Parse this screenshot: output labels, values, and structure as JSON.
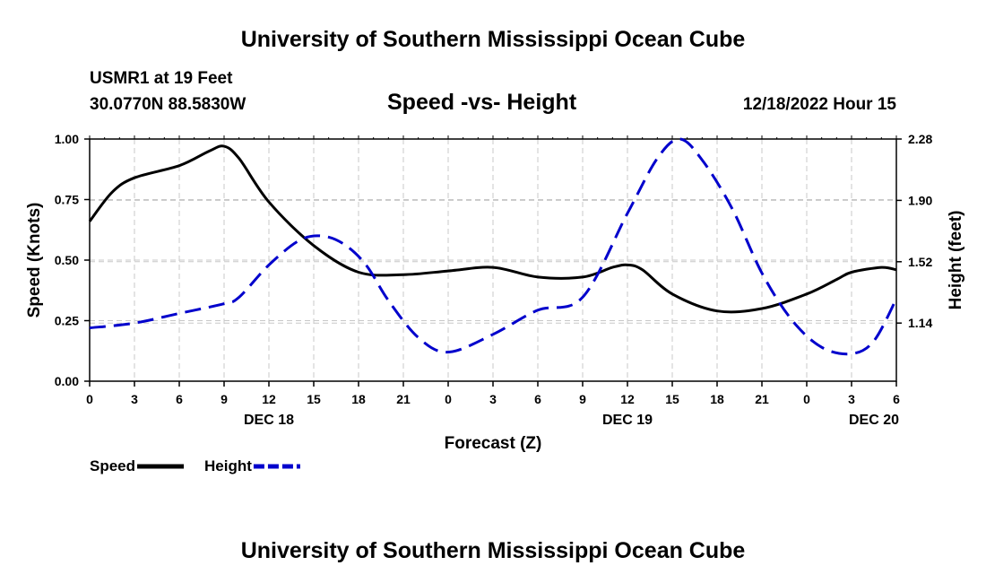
{
  "header": {
    "title": "University of Southern Mississippi Ocean Cube",
    "station": "USMR1 at 19 Feet",
    "coords": "30.0770N  88.5830W",
    "datetime": "12/18/2022 Hour 15"
  },
  "footer": {
    "title": "University of Southern Mississippi Ocean Cube"
  },
  "chart_data": {
    "type": "line",
    "title": "Speed -vs- Height",
    "xlabel": "Forecast (Z)",
    "ylabel": "Speed (Knots)",
    "y2label": "Height (feet)",
    "grid": true,
    "x_range": [
      0,
      54
    ],
    "ylim": [
      0,
      1.0
    ],
    "y2lim": [
      0.78,
      2.28
    ],
    "x_ticks": [
      0,
      3,
      6,
      9,
      12,
      15,
      18,
      21,
      24,
      27,
      30,
      33,
      36,
      39,
      42,
      45,
      48,
      51,
      54
    ],
    "x_tick_labels": [
      "0",
      "3",
      "6",
      "9",
      "12",
      "15",
      "18",
      "21",
      "0",
      "3",
      "6",
      "9",
      "12",
      "15",
      "18",
      "21",
      "0",
      "3",
      "6"
    ],
    "date_labels": [
      {
        "x": 12,
        "label": "DEC 18"
      },
      {
        "x": 36,
        "label": "DEC 19"
      },
      {
        "x": 52.5,
        "label": "DEC 20"
      }
    ],
    "y_ticks": [
      0.0,
      0.25,
      0.5,
      0.75,
      1.0
    ],
    "y_tick_labels": [
      "0.00",
      "0.25",
      "0.50",
      "0.75",
      "1.00"
    ],
    "y2_ticks": [
      1.14,
      1.52,
      1.9,
      2.28
    ],
    "y2_tick_labels": [
      "1.14",
      "1.52",
      "1.90",
      "2.28"
    ],
    "series": [
      {
        "name": "Speed",
        "axis": "left",
        "color": "#000000",
        "dash": "solid",
        "x": [
          0,
          1.5,
          3,
          6,
          8,
          9,
          10,
          12,
          15,
          18,
          21,
          24,
          27,
          30,
          33,
          35,
          36,
          37,
          39,
          42,
          45,
          48,
          50,
          51,
          53,
          54
        ],
        "values": [
          0.66,
          0.78,
          0.84,
          0.89,
          0.95,
          0.97,
          0.92,
          0.74,
          0.56,
          0.45,
          0.44,
          0.455,
          0.47,
          0.43,
          0.43,
          0.47,
          0.48,
          0.46,
          0.36,
          0.29,
          0.3,
          0.36,
          0.42,
          0.45,
          0.47,
          0.46
        ]
      },
      {
        "name": "Height",
        "axis": "right",
        "color": "#0000cc",
        "dash": "dashed",
        "x": [
          0,
          3,
          6,
          9,
          10,
          12,
          14,
          15.5,
          17,
          18.5,
          20,
          22,
          24,
          27,
          30,
          33,
          36,
          38,
          39.5,
          41,
          43,
          45,
          47,
          49,
          51,
          52.5,
          54
        ],
        "values": [
          1.11,
          1.14,
          1.2,
          1.26,
          1.3,
          1.5,
          1.65,
          1.68,
          1.63,
          1.5,
          1.28,
          1.05,
          0.96,
          1.07,
          1.22,
          1.3,
          1.82,
          2.16,
          2.28,
          2.15,
          1.85,
          1.45,
          1.16,
          0.99,
          0.95,
          1.03,
          1.29
        ]
      }
    ],
    "legend": [
      {
        "label": "Speed",
        "series": "Speed"
      },
      {
        "label": "Height",
        "series": "Height"
      }
    ],
    "legend_position": "bottom-left"
  }
}
